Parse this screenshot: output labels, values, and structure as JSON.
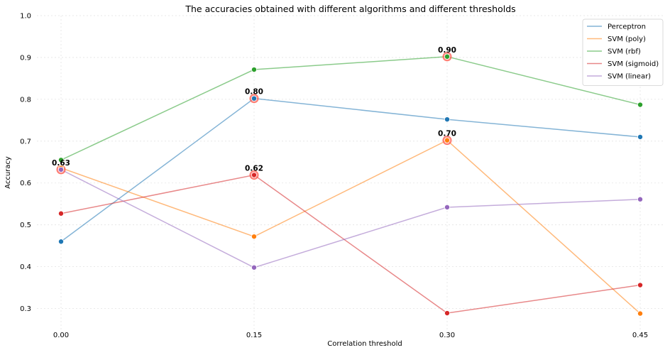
{
  "chart_data": {
    "type": "line",
    "title": "The accuracies obtained with different algorithms and different thresholds",
    "xlabel": "Correlation threshold",
    "ylabel": "Accuracy",
    "x": [
      0.0,
      0.15,
      0.3,
      0.45
    ],
    "x_tick_labels": [
      "0.00",
      "0.15",
      "0.30",
      "0.45"
    ],
    "ylim": [
      0.25,
      1.0
    ],
    "y_ticks": [
      0.3,
      0.4,
      0.5,
      0.6,
      0.7,
      0.8,
      0.9,
      1.0
    ],
    "y_tick_labels": [
      "0.3",
      "0.4",
      "0.5",
      "0.6",
      "0.7",
      "0.8",
      "0.9",
      "1.0"
    ],
    "grid": true,
    "legend_position": "top-right",
    "series": [
      {
        "name": "Perceptron",
        "color": "#1f77b4",
        "values": [
          0.46,
          0.802,
          0.752,
          0.71
        ]
      },
      {
        "name": "SVM (poly)",
        "color": "#ff7f0e",
        "values": [
          0.636,
          0.472,
          0.702,
          0.288
        ]
      },
      {
        "name": "SVM (rbf)",
        "color": "#2ca02c",
        "values": [
          0.655,
          0.871,
          0.902,
          0.787
        ]
      },
      {
        "name": "SVM (sigmoid)",
        "color": "#d62728",
        "values": [
          0.527,
          0.619,
          0.289,
          0.356
        ]
      },
      {
        "name": "SVM (linear)",
        "color": "#9467bd",
        "values": [
          0.632,
          0.398,
          0.542,
          0.561
        ]
      }
    ],
    "annotations": [
      {
        "x": 0.0,
        "y": 0.632,
        "label": "0.63"
      },
      {
        "x": 0.15,
        "y": 0.802,
        "label": "0.80"
      },
      {
        "x": 0.15,
        "y": 0.619,
        "label": "0.62"
      },
      {
        "x": 0.3,
        "y": 0.902,
        "label": "0.90"
      },
      {
        "x": 0.3,
        "y": 0.702,
        "label": "0.70"
      }
    ]
  }
}
